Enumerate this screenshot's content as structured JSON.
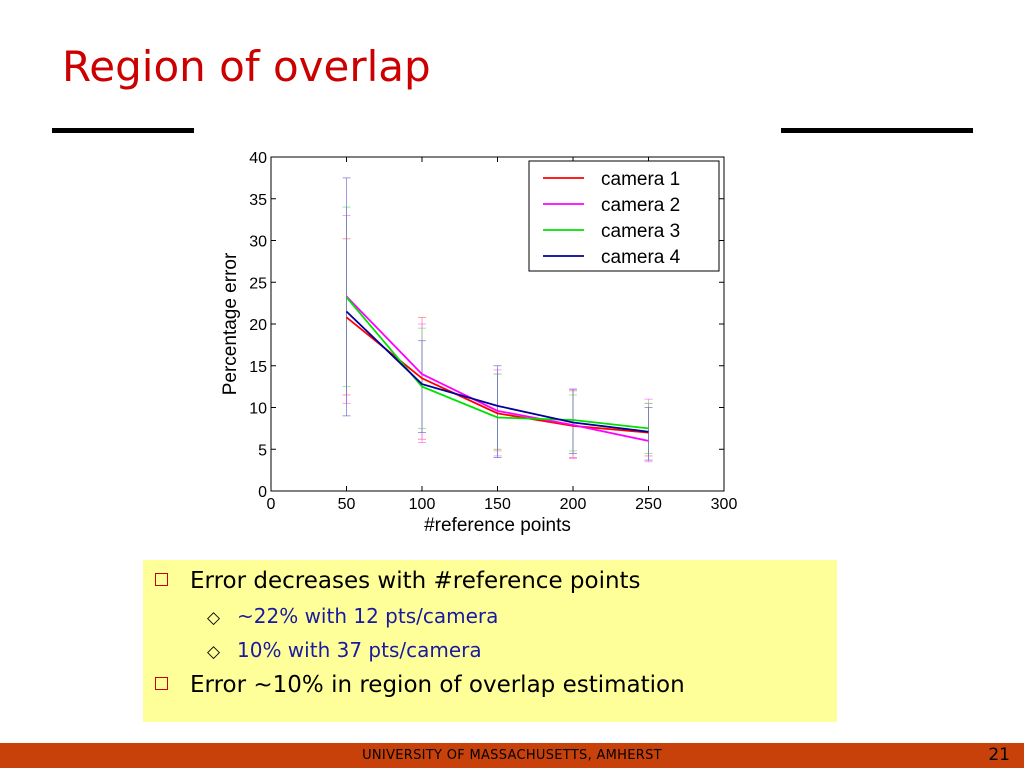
{
  "slide": {
    "title": "Region of overlap",
    "footer": "UNIVERSITY OF MASSACHUSETTS, AMHERST",
    "page_number": "21"
  },
  "bullets": {
    "b1": "Error decreases with #reference points",
    "b1_sub1": "~22% with 12 pts/camera",
    "b1_sub2": "10% with 37 pts/camera",
    "b2": "Error ~10% in region of overlap estimation"
  },
  "chart_data": {
    "type": "line",
    "xlabel": "#reference points",
    "ylabel": "Percentage error",
    "xlim": [
      0,
      300
    ],
    "ylim": [
      0,
      40
    ],
    "xticks": [
      0,
      50,
      100,
      150,
      200,
      250,
      300
    ],
    "yticks": [
      0,
      5,
      10,
      15,
      20,
      25,
      30,
      35,
      40
    ],
    "legend_position": "top-right",
    "x": [
      50,
      100,
      150,
      200,
      250
    ],
    "series": [
      {
        "name": "camera 1",
        "color": "#ff0000",
        "values": [
          20.8,
          13.5,
          9.3,
          7.8,
          7.0
        ],
        "err_low": [
          11.5,
          6.2,
          5.0,
          4.0,
          4.2
        ],
        "err_high": [
          30.2,
          20.8,
          14.0,
          12.0,
          10.5
        ]
      },
      {
        "name": "camera 2",
        "color": "#ff00ff",
        "values": [
          23.3,
          14.0,
          9.6,
          7.9,
          6.0
        ],
        "err_low": [
          10.5,
          5.8,
          4.2,
          3.9,
          3.5
        ],
        "err_high": [
          33.0,
          20.0,
          14.5,
          12.2,
          11.0
        ]
      },
      {
        "name": "camera 3",
        "color": "#00e000",
        "values": [
          23.2,
          12.5,
          8.8,
          8.5,
          7.5
        ],
        "err_low": [
          12.5,
          7.5,
          4.8,
          4.8,
          4.5
        ],
        "err_high": [
          34.0,
          19.5,
          14.0,
          11.5,
          10.5
        ]
      },
      {
        "name": "camera 4",
        "color": "#000099",
        "values": [
          21.5,
          12.8,
          10.2,
          8.2,
          7.1
        ],
        "err_low": [
          9.0,
          7.0,
          4.0,
          4.5,
          3.7
        ],
        "err_high": [
          37.5,
          18.0,
          15.0,
          12.2,
          10.0
        ]
      }
    ],
    "errorbar_colors": {
      "camera 1": "#ff6666",
      "camera 2": "#ff66ff",
      "camera 3": "#66dd66",
      "camera 4": "#6666cc"
    }
  }
}
